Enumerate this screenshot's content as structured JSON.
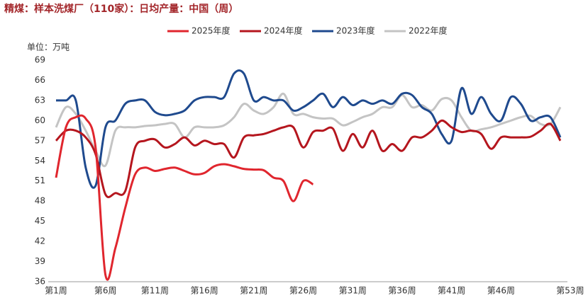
{
  "chart_data": {
    "type": "line",
    "title": "精煤：样本洗煤厂（110家）：日均产量：中国（周）",
    "unit_label": "单位：万吨",
    "categories": [
      "第1周",
      null,
      null,
      null,
      null,
      "第6周",
      null,
      null,
      null,
      null,
      "第11周",
      null,
      null,
      null,
      null,
      "第16周",
      null,
      null,
      null,
      null,
      "第21周",
      null,
      null,
      null,
      null,
      "第26周",
      null,
      null,
      null,
      null,
      "第31周",
      null,
      null,
      null,
      null,
      "第36周",
      null,
      null,
      null,
      null,
      "第41周",
      null,
      null,
      null,
      null,
      "第46周",
      null,
      null,
      null,
      null,
      null,
      null,
      "第53周"
    ],
    "series": [
      {
        "name": "2025年度",
        "color": "#e0262e",
        "values": [
          51.5,
          59,
          60.5,
          60.3,
          56,
          37,
          41,
          47,
          52,
          53,
          52.5,
          52.8,
          53,
          52.5,
          52,
          52.2,
          53.2,
          53.5,
          53.2,
          52.8,
          52.7,
          52.6,
          51.5,
          51,
          48,
          51,
          50.5,
          null,
          null,
          null,
          null,
          null,
          null,
          null,
          null,
          null,
          null,
          null,
          null,
          null,
          null,
          null,
          null,
          null,
          null,
          null,
          null,
          null,
          null,
          null,
          null,
          null,
          null
        ]
      },
      {
        "name": "2024年度",
        "color": "#b5161e",
        "values": [
          57,
          58.5,
          58.5,
          57.5,
          55,
          49,
          49.2,
          49.5,
          56,
          57,
          57.2,
          56,
          56.5,
          57.5,
          56.3,
          57,
          56.5,
          56.5,
          54.5,
          57.5,
          57.8,
          58,
          58.5,
          59,
          59,
          56,
          58.3,
          58.5,
          58.8,
          55.5,
          58,
          56,
          58.5,
          55.5,
          56.5,
          55.5,
          57.5,
          57.5,
          58.5,
          60,
          59,
          58.3,
          58.5,
          58,
          55.8,
          57.5,
          57.5,
          57.5,
          57.6,
          58.5,
          59.5,
          57,
          null
        ]
      },
      {
        "name": "2023年度",
        "color": "#1f4a8e",
        "values": [
          63,
          63,
          63,
          53,
          50.3,
          59,
          60,
          62.5,
          63,
          63,
          61.3,
          60.8,
          61,
          61.5,
          63,
          63.5,
          63.5,
          63.5,
          67,
          67,
          63,
          63.5,
          63,
          63,
          61.5,
          62,
          63,
          64,
          62,
          63.5,
          62.3,
          63,
          62.5,
          63,
          62.5,
          64,
          63.8,
          62,
          61,
          58,
          57,
          64.8,
          61,
          63.5,
          61,
          60,
          63.5,
          62.5,
          60,
          60.5,
          60.5,
          57.5,
          null
        ]
      },
      {
        "name": "2022年度",
        "color": "#c4c4c4",
        "values": [
          59,
          62,
          61,
          58.5,
          55.5,
          53.3,
          58.5,
          59,
          59,
          59.2,
          59.3,
          59.5,
          59.5,
          57.5,
          59,
          59,
          59,
          59.3,
          60.5,
          62.5,
          61.5,
          61,
          62,
          64,
          61,
          61,
          60.5,
          60.3,
          60.3,
          59.3,
          59.8,
          60.5,
          61,
          62,
          62,
          63.8,
          62,
          62.3,
          61.5,
          63.2,
          63,
          60.5,
          58.5,
          58.7,
          59,
          59.5,
          60,
          60.5,
          60.7,
          59.5,
          59.5,
          62,
          null
        ]
      }
    ],
    "ylim": [
      36,
      69
    ],
    "yticks": [
      36,
      39,
      42,
      45,
      48,
      51,
      54,
      57,
      60,
      63,
      66,
      69
    ],
    "legend": "top",
    "grid": false
  }
}
